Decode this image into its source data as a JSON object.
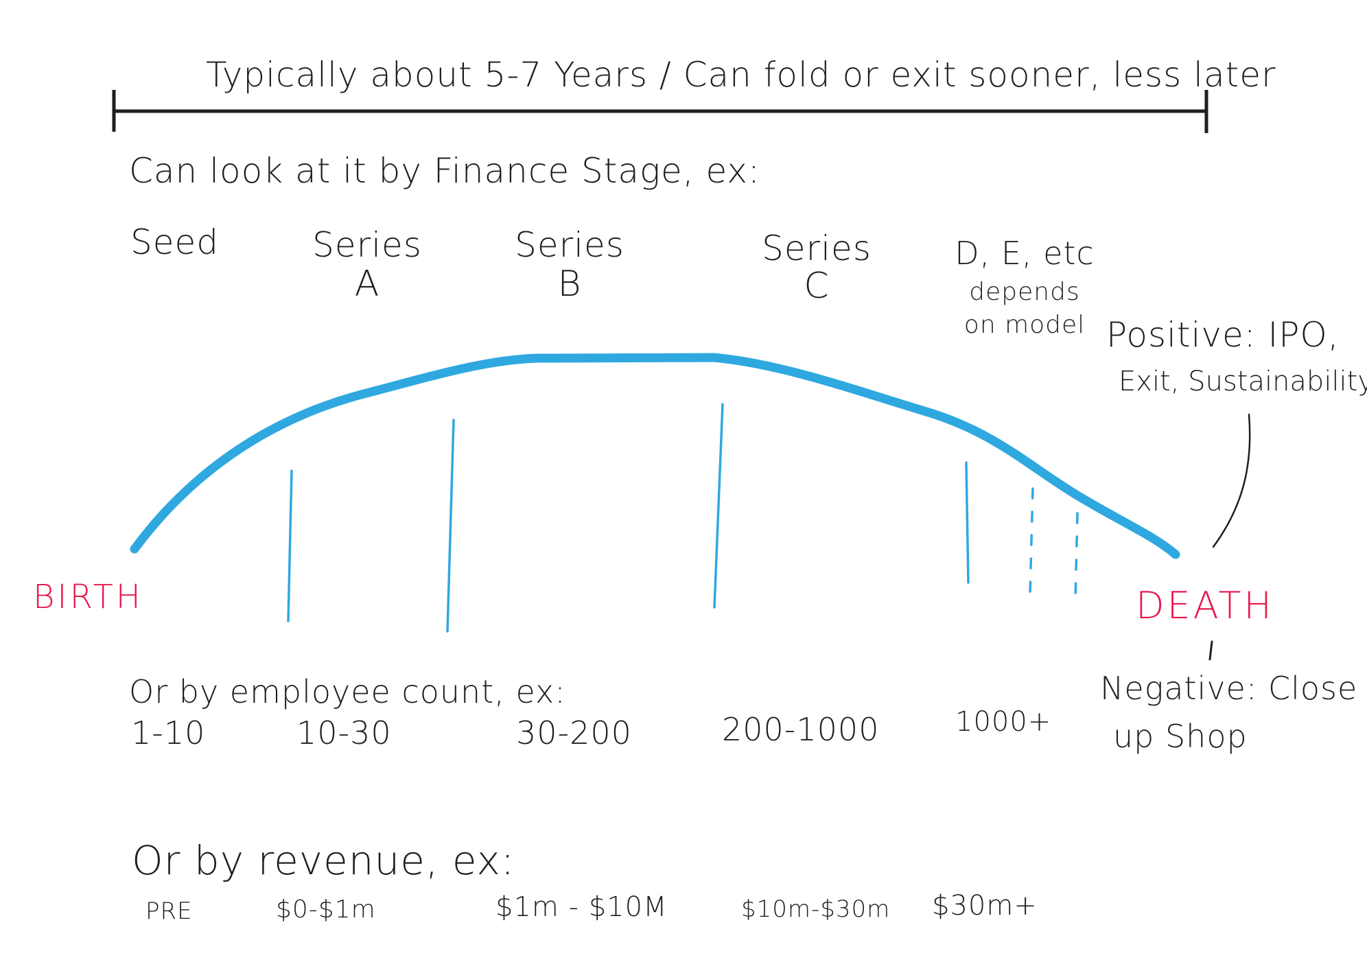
{
  "timeline": {
    "duration_label": "Typically about 5-7 Years / Can fold or exit sooner, less later"
  },
  "finance": {
    "heading": "Can look at it by Finance Stage, ex:",
    "stages": [
      {
        "line1": "Seed",
        "line2": ""
      },
      {
        "line1": "Series",
        "line2": "A"
      },
      {
        "line1": "Series",
        "line2": "B"
      },
      {
        "line1": "Series",
        "line2": "C"
      },
      {
        "line1": "D, E, etc",
        "line2": "depends",
        "line3": "on model"
      }
    ]
  },
  "lifecycle": {
    "start_label": "BIRTH",
    "end_label": "DEATH",
    "positive_outcome_line1": "Positive: IPO,",
    "positive_outcome_line2": "Exit, Sustainability",
    "negative_outcome_line1": "Negative: Close",
    "negative_outcome_line2": "up Shop"
  },
  "employees": {
    "heading": "Or by employee count, ex:",
    "ranges": [
      "1-10",
      "10-30",
      "30-200",
      "200-1000",
      "1000+"
    ]
  },
  "revenue": {
    "heading": "Or by revenue, ex:",
    "ranges": [
      "PRE",
      "$0-$1m",
      "$1m - $10M",
      "$10m-$30m",
      "$30m+"
    ]
  },
  "colors": {
    "curve": "#2fa8e0",
    "ink": "#1f1f23",
    "accent": "#e8174c"
  }
}
